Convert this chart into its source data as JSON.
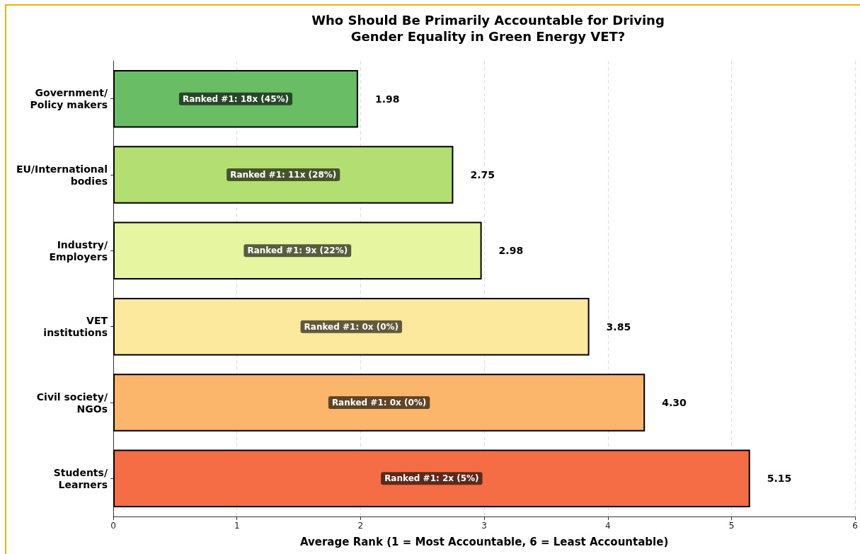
{
  "chart_data": {
    "type": "bar",
    "orientation": "horizontal",
    "title": "Who Should Be Primarily Accountable for Driving\nGender Equality in Green Energy VET?",
    "xlabel": "Average Rank (1 = Most Accountable, 6 = Least Accountable)",
    "categories": [
      "Government/\nPolicy makers",
      "EU/International\nbodies",
      "Industry/\nEmployers",
      "VET\ninstitutions",
      "Civil society/\nNGOs",
      "Students/\nLearners"
    ],
    "values": [
      1.98,
      2.75,
      2.98,
      3.85,
      4.3,
      5.15
    ],
    "colors": [
      "#68bd65",
      "#b2de72",
      "#e6f5a0",
      "#fde99d",
      "#fbb66b",
      "#f46d45"
    ],
    "value_labels": [
      "1.98",
      "2.75",
      "2.98",
      "3.85",
      "4.30",
      "5.15"
    ],
    "annotations": [
      "Ranked #1: 18x (45%)",
      "Ranked #1: 11x (28%)",
      "Ranked #1: 9x (22%)",
      "Ranked #1: 0x (0%)",
      "Ranked #1: 0x (0%)",
      "Ranked #1: 2x (5%)"
    ],
    "xlim": [
      0,
      6
    ],
    "xticks": [
      0,
      1,
      2,
      3,
      4,
      5,
      6
    ],
    "grid": "x"
  }
}
